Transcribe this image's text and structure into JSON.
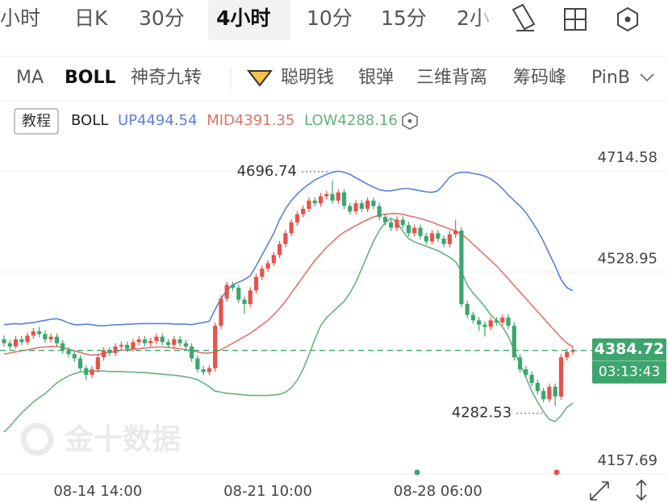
{
  "tabs": [
    "小时",
    "日K",
    "30分",
    "4小时",
    "10分",
    "15分",
    "2小"
  ],
  "indicators": [
    "MA",
    "BOLL",
    "神奇九转",
    "聪明钱",
    "银弹",
    "三维背离",
    "筹码峰",
    "PinB"
  ],
  "tutorial_button": "教程",
  "watermark": "金十数据",
  "chart_data": {
    "type": "candlestick",
    "indicator": "BOLL",
    "countdown": "03:13:43",
    "up_color": "#e5534b",
    "down_color": "#3da56e",
    "grid": true,
    "ylim": [
      4157.69,
      4714.58
    ],
    "yticks": [
      4157.69,
      4528.95,
      4714.58
    ],
    "categories": [
      null,
      null,
      null,
      null,
      null,
      null,
      null,
      null,
      null,
      null,
      null,
      null,
      null,
      null,
      null,
      null,
      "08-14 14:00",
      null,
      null,
      null,
      null,
      null,
      null,
      null,
      null,
      null,
      null,
      null,
      null,
      null,
      null,
      null,
      null,
      null,
      null,
      null,
      null,
      null,
      null,
      null,
      null,
      null,
      null,
      null,
      null,
      "08-21 10:00",
      null,
      null,
      null,
      null,
      null,
      null,
      null,
      null,
      null,
      null,
      null,
      null,
      null,
      null,
      null,
      null,
      null,
      null,
      null,
      null,
      null,
      null,
      null,
      null,
      null,
      null,
      null,
      null,
      "08-28 06:00",
      null,
      null,
      null,
      null,
      null,
      null,
      null,
      null,
      null,
      null,
      null,
      null,
      null,
      null,
      null,
      null,
      null,
      null,
      null,
      null,
      null,
      null,
      null
    ],
    "open": [
      4405,
      4398,
      4392,
      4405,
      4400,
      4412,
      4420,
      4415,
      4405,
      4410,
      4398,
      4385,
      4378,
      4370,
      4352,
      4340,
      4350,
      4372,
      4385,
      4380,
      4392,
      4395,
      4388,
      4400,
      4405,
      4398,
      4402,
      4410,
      4400,
      4395,
      4405,
      4398,
      4392,
      4370,
      4350,
      4345,
      4352,
      4430,
      4480,
      4505,
      4500,
      4478,
      4470,
      4495,
      4520,
      4535,
      4545,
      4560,
      4580,
      4600,
      4620,
      4635,
      4645,
      4660,
      4655,
      4668,
      4672,
      4660,
      4675,
      4650,
      4640,
      4655,
      4645,
      4660,
      4650,
      4630,
      4620,
      4610,
      4625,
      4615,
      4600,
      4610,
      4595,
      4585,
      4600,
      4590,
      4580,
      4598,
      4605,
      4470,
      4450,
      4440,
      4432,
      4428,
      4440,
      4436,
      4445,
      4430,
      4372,
      4350,
      4340,
      4325,
      4310,
      4295,
      4318,
      4300,
      4372,
      4382
    ],
    "high": [
      4412,
      4404,
      4411,
      4411,
      4418,
      4426,
      4428,
      4421,
      4416,
      4416,
      4404,
      4391,
      4384,
      4376,
      4358,
      4356,
      4378,
      4391,
      4391,
      4398,
      4401,
      4401,
      4406,
      4411,
      4411,
      4408,
      4416,
      4416,
      4406,
      4411,
      4411,
      4404,
      4398,
      4376,
      4356,
      4358,
      4436,
      4486,
      4511,
      4511,
      4506,
      4484,
      4501,
      4526,
      4541,
      4551,
      4566,
      4586,
      4606,
      4626,
      4641,
      4651,
      4666,
      4666,
      4674,
      4678,
      4696.74,
      4681,
      4681,
      4656,
      4661,
      4661,
      4666,
      4666,
      4656,
      4636,
      4626,
      4631,
      4631,
      4621,
      4616,
      4616,
      4601,
      4606,
      4606,
      4596,
      4604,
      4625,
      4611,
      4476,
      4456,
      4446,
      4438,
      4446,
      4446,
      4451,
      4451,
      4436,
      4378,
      4356,
      4346,
      4331,
      4316,
      4324,
      4324,
      4378,
      4388,
      4392
    ],
    "low": [
      4392,
      4386,
      4388,
      4394,
      4395,
      4406,
      4409,
      4399,
      4399,
      4392,
      4379,
      4372,
      4364,
      4346,
      4330,
      4334,
      4344,
      4366,
      4374,
      4374,
      4386,
      4382,
      4382,
      4394,
      4392,
      4392,
      4396,
      4394,
      4389,
      4389,
      4392,
      4386,
      4364,
      4344,
      4339,
      4339,
      4346,
      4424,
      4474,
      4494,
      4472,
      4452,
      4464,
      4489,
      4514,
      4529,
      4539,
      4554,
      4574,
      4594,
      4614,
      4629,
      4639,
      4649,
      4649,
      4662,
      4654,
      4654,
      4644,
      4634,
      4634,
      4639,
      4639,
      4644,
      4624,
      4614,
      4604,
      4604,
      4609,
      4594,
      4594,
      4589,
      4579,
      4579,
      4584,
      4574,
      4574,
      4592,
      4464,
      4444,
      4434,
      4420,
      4410,
      4422,
      4430,
      4430,
      4424,
      4366,
      4344,
      4334,
      4319,
      4304,
      4289,
      4289,
      4282.53,
      4294,
      4366,
      4376
    ],
    "close": [
      4398,
      4392,
      4405,
      4400,
      4412,
      4420,
      4415,
      4405,
      4410,
      4398,
      4385,
      4378,
      4370,
      4352,
      4340,
      4350,
      4372,
      4385,
      4380,
      4392,
      4395,
      4388,
      4400,
      4405,
      4398,
      4402,
      4410,
      4400,
      4395,
      4405,
      4398,
      4392,
      4370,
      4350,
      4345,
      4352,
      4430,
      4480,
      4505,
      4500,
      4478,
      4470,
      4495,
      4520,
      4535,
      4545,
      4560,
      4580,
      4600,
      4620,
      4635,
      4645,
      4660,
      4655,
      4668,
      4672,
      4660,
      4675,
      4650,
      4640,
      4655,
      4645,
      4660,
      4650,
      4630,
      4620,
      4610,
      4625,
      4615,
      4600,
      4610,
      4595,
      4585,
      4600,
      4590,
      4580,
      4598,
      4605,
      4470,
      4450,
      4440,
      4432,
      4428,
      4440,
      4436,
      4445,
      4430,
      4372,
      4350,
      4340,
      4325,
      4310,
      4295,
      4318,
      4300,
      4372,
      4382,
      4384.72
    ],
    "series": [
      {
        "name": "UP",
        "color": "#5b80d8",
        "values": [
          4432,
          4433,
          4434,
          4433,
          4435,
          4436,
          4438,
          4440,
          4442,
          4443,
          4440,
          4435,
          4432,
          4432,
          4433,
          4432,
          4430,
          4430,
          4431,
          4432,
          4432,
          4433,
          4433,
          4434,
          4434,
          4434,
          4434,
          4434,
          4434,
          4433,
          4433,
          4433,
          4432,
          4434,
          4436,
          4438,
          4460,
          4480,
          4495,
          4505,
          4510,
          4515,
          4522,
          4540,
          4560,
          4580,
          4600,
          4625,
          4645,
          4660,
          4672,
          4682,
          4690,
          4698,
          4703,
          4708,
          4712,
          4714,
          4712,
          4708,
          4702,
          4696,
          4690,
          4685,
          4680,
          4678,
          4678,
          4680,
          4682,
          4682,
          4680,
          4678,
          4676,
          4675,
          4678,
          4690,
          4703,
          4710,
          4712,
          4712,
          4710,
          4708,
          4705,
          4700,
          4692,
          4682,
          4670,
          4660,
          4650,
          4638,
          4622,
          4605,
          4585,
          4562,
          4540,
          4515,
          4500,
          4494.54
        ]
      },
      {
        "name": "MID",
        "color": "#e0736b",
        "values": [
          4378,
          4380,
          4382,
          4384,
          4386,
          4388,
          4390,
          4391,
          4392,
          4392,
          4390,
          4387,
          4384,
          4381,
          4378,
          4376,
          4377,
          4379,
          4381,
          4383,
          4385,
          4386,
          4387,
          4388,
          4389,
          4390,
          4391,
          4391,
          4390,
          4389,
          4388,
          4386,
          4384,
          4382,
          4380,
          4380,
          4382,
          4386,
          4392,
          4398,
          4404,
          4410,
          4416,
          4424,
          4432,
          4440,
          4450,
          4462,
          4475,
          4490,
          4505,
          4520,
          4535,
          4550,
          4562,
          4574,
          4584,
          4594,
          4602,
          4608,
          4614,
          4620,
          4625,
          4630,
          4633,
          4635,
          4636,
          4636,
          4635,
          4632,
          4630,
          4627,
          4624,
          4620,
          4616,
          4612,
          4608,
          4604,
          4598,
          4590,
          4580,
          4570,
          4560,
          4550,
          4540,
          4528,
          4516,
          4504,
          4492,
          4480,
          4468,
          4456,
          4444,
          4432,
          4420,
          4408,
          4398,
          4391.35
        ]
      },
      {
        "name": "LOW",
        "color": "#62b47d",
        "values": [
          4235,
          4245,
          4258,
          4270,
          4280,
          4290,
          4298,
          4305,
          4315,
          4325,
          4332,
          4338,
          4342,
          4345,
          4346,
          4347,
          4347,
          4347,
          4346,
          4346,
          4346,
          4345,
          4345,
          4344,
          4344,
          4343,
          4342,
          4341,
          4340,
          4339,
          4338,
          4336,
          4334,
          4331,
          4325,
          4318,
          4310,
          4308,
          4306,
          4305,
          4304,
          4303,
          4302,
          4302,
          4302,
          4302,
          4303,
          4304,
          4308,
          4316,
          4330,
          4350,
          4376,
          4405,
          4430,
          4445,
          4455,
          4465,
          4475,
          4490,
          4510,
          4535,
          4560,
          4585,
          4605,
          4620,
          4628,
          4620,
          4604,
          4590,
          4584,
          4580,
          4576,
          4572,
          4568,
          4562,
          4556,
          4548,
          4530,
          4505,
          4490,
          4478,
          4465,
          4450,
          4440,
          4428,
          4410,
          4385,
          4360,
          4335,
          4310,
          4290,
          4272,
          4258,
          4254,
          4265,
          4280,
          4288.16
        ]
      }
    ]
  }
}
